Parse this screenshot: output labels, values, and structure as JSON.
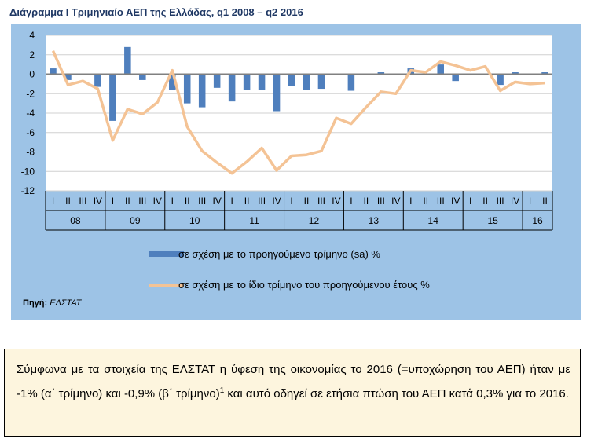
{
  "title": "Διάγραμμα I Τριμηνιαίο ΑΕΠ της Ελλάδας, q1 2008 – q2 2016",
  "source_label": "Πηγή:",
  "source_value": "ΕΛΣΤΑΤ",
  "note": {
    "text_before": "Σύμφωνα με τα στοιχεία της ΕΛΣΤΑΤ η ύφεση της οικονομίας το 2016 (=υποχώρηση του ΑΕΠ) ήταν με -1% (α΄ τρίμηνο) και -0,9% (β΄ τρίμηνο)",
    "superscript": "1",
    "text_after": " και αυτό οδηγεί σε ετήσια πτώση του ΑΕΠ κατά 0,3% για το 2016."
  },
  "colors": {
    "bars": "#4f7fbd",
    "line": "#f4c395",
    "panel": "#9dc3e6",
    "plot": "#ffffff"
  },
  "chart_data": {
    "type": "bar+line",
    "categories": [
      "I",
      "II",
      "III",
      "IV",
      "I",
      "II",
      "III",
      "IV",
      "I",
      "II",
      "III",
      "IV",
      "I",
      "II",
      "III",
      "IV",
      "I",
      "II",
      "III",
      "IV",
      "I",
      "II",
      "III",
      "IV",
      "I",
      "II",
      "III",
      "IV",
      "I",
      "II",
      "III",
      "IV",
      "I",
      "II"
    ],
    "years": [
      {
        "label": "08",
        "quarters": 4
      },
      {
        "label": "09",
        "quarters": 4
      },
      {
        "label": "10",
        "quarters": 4
      },
      {
        "label": "11",
        "quarters": 4
      },
      {
        "label": "12",
        "quarters": 4
      },
      {
        "label": "13",
        "quarters": 4
      },
      {
        "label": "14",
        "quarters": 4
      },
      {
        "label": "15",
        "quarters": 4
      },
      {
        "label": "16",
        "quarters": 2
      }
    ],
    "series": [
      {
        "name": "σε σχέση με το προηγούμενο τρίμηνο (sa) %",
        "type": "bar",
        "values": [
          0.6,
          -0.6,
          0.0,
          -1.3,
          -4.8,
          2.8,
          -0.6,
          0.0,
          -1.6,
          -3.0,
          -3.4,
          -1.4,
          -2.8,
          -1.6,
          -1.6,
          -3.8,
          -1.2,
          -1.6,
          -1.5,
          0.0,
          -1.7,
          0.0,
          0.2,
          0.0,
          0.6,
          0.0,
          1.0,
          -0.7,
          0.0,
          0.0,
          -1.1,
          0.2,
          0.0,
          0.2
        ]
      },
      {
        "name": "σε σχέση με το ίδιο τρίμηνο του προηγούμενου έτους %",
        "type": "line",
        "values": [
          2.4,
          -1.1,
          -0.7,
          -1.5,
          -6.8,
          -3.6,
          -4.1,
          -2.9,
          0.4,
          -5.4,
          -7.9,
          -9.1,
          -10.2,
          -9.0,
          -7.6,
          -9.9,
          -8.4,
          -8.3,
          -7.9,
          -4.5,
          -5.1,
          -3.4,
          -1.8,
          -2.0,
          0.4,
          0.2,
          1.3,
          0.9,
          0.4,
          0.8,
          -1.7,
          -0.8,
          -1.0,
          -0.9
        ]
      }
    ],
    "ylim": [
      -12,
      4
    ],
    "yticks": [
      4,
      2,
      0,
      -2,
      -4,
      -6,
      -8,
      -10,
      -12
    ],
    "grid": true,
    "legend_position": "bottom"
  }
}
